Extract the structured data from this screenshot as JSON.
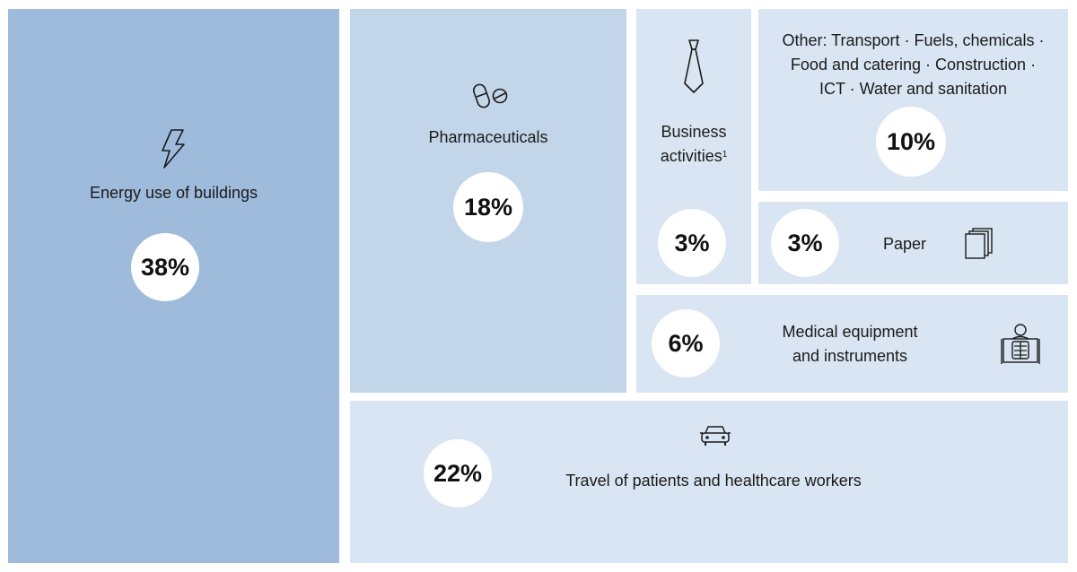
{
  "chart_data": {
    "type": "treemap",
    "categories": [
      "Energy use of buildings",
      "Travel of patients and healthcare workers",
      "Pharmaceuticals",
      "Other: Transport · Fuels, chemicals · Food and catering · Construction · ICT · Water and sanitation",
      "Medical equipment and instruments",
      "Business activities",
      "Paper"
    ],
    "values": [
      38,
      22,
      18,
      10,
      6,
      3,
      3
    ],
    "unit": "%",
    "tiles": {
      "energy": {
        "label": "Energy use of buildings",
        "value": "38%",
        "icon": "lightning-icon"
      },
      "pharma": {
        "label": "Pharmaceuticals",
        "value": "18%",
        "icon": "pills-icon"
      },
      "business": {
        "label_line1": "Business",
        "label_line2": "activities",
        "footnote": "1",
        "value": "3%",
        "icon": "necktie-icon"
      },
      "other": {
        "label_line1": "Other: Transport · Fuels, chemicals ·",
        "label_line2": "Food and catering · Construction ·",
        "label_line3": "ICT · Water and sanitation",
        "value": "10%"
      },
      "paper": {
        "label": "Paper",
        "value": "3%",
        "icon": "paper-stack-icon"
      },
      "medical": {
        "label_line1": "Medical equipment",
        "label_line2": "and instruments",
        "value": "6%",
        "icon": "xray-icon"
      },
      "travel": {
        "label": "Travel of patients and healthcare workers",
        "value": "22%",
        "icon": "car-icon"
      }
    },
    "colors": {
      "largest": "#9ebbdc",
      "medium": "#c3d6e9",
      "light": "#d9e5f2",
      "circle": "#ffffff"
    }
  }
}
